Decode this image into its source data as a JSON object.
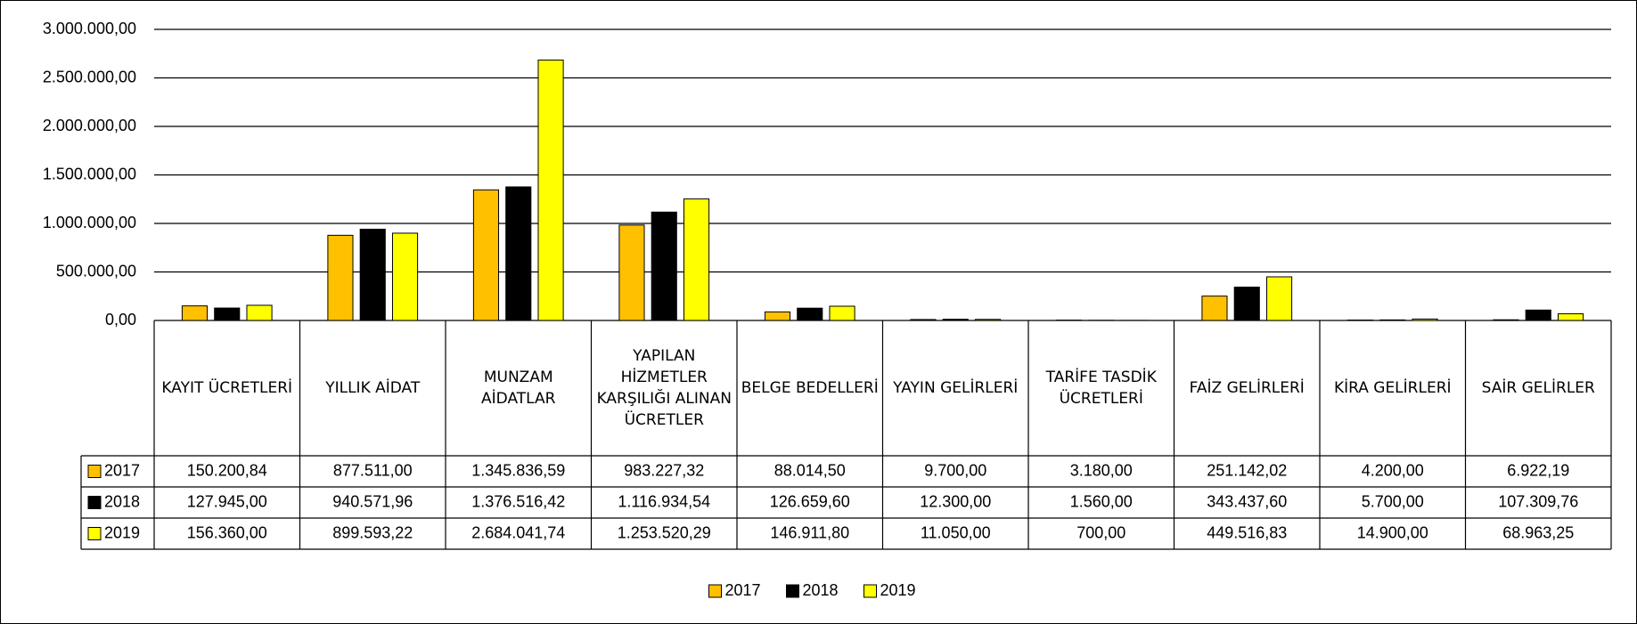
{
  "chart_data": {
    "type": "bar",
    "categories": [
      "KAYIT ÜCRETLERİ",
      "YILLIK AİDAT",
      "MUNZAM AİDATLAR",
      "YAPILAN HİZMETLER KARŞILIĞI ALINAN ÜCRETLER",
      "BELGE BEDELLERİ",
      "YAYIN GELİRLERİ",
      "TARİFE TASDİK ÜCRETLERİ",
      "FAİZ GELİRLERİ",
      "KİRA GELİRLERİ",
      "SAİR GELİRLER"
    ],
    "series": [
      {
        "name": "2017",
        "color": "#ffc000",
        "values": [
          150200.84,
          877511.0,
          1345836.59,
          983227.32,
          88014.5,
          9700.0,
          3180.0,
          251142.02,
          4200.0,
          6922.19
        ],
        "value_labels": [
          "150.200,84",
          "877.511,00",
          "1.345.836,59",
          "983.227,32",
          "88.014,50",
          "9.700,00",
          "3.180,00",
          "251.142,02",
          "4.200,00",
          "6.922,19"
        ]
      },
      {
        "name": "2018",
        "color": "#000000",
        "values": [
          127945.0,
          940571.96,
          1376516.42,
          1116934.54,
          126659.6,
          12300.0,
          1560.0,
          343437.6,
          5700.0,
          107309.76
        ],
        "value_labels": [
          "127.945,00",
          "940.571,96",
          "1.376.516,42",
          "1.116.934,54",
          "126.659,60",
          "12.300,00",
          "1.560,00",
          "343.437,60",
          "5.700,00",
          "107.309,76"
        ]
      },
      {
        "name": "2019",
        "color": "#ffff00",
        "values": [
          156360.0,
          899593.22,
          2684041.74,
          1253520.29,
          146911.8,
          11050.0,
          700.0,
          449516.83,
          14900.0,
          68963.25
        ],
        "value_labels": [
          "156.360,00",
          "899.593,22",
          "2.684.041,74",
          "1.253.520,29",
          "146.911,80",
          "11.050,00",
          "700,00",
          "449.516,83",
          "14.900,00",
          "68.963,25"
        ]
      }
    ],
    "ylim": [
      0,
      3000000
    ],
    "yticks": [
      {
        "value": 0,
        "label": "0,00"
      },
      {
        "value": 500000,
        "label": "500.000,00"
      },
      {
        "value": 1000000,
        "label": "1.000.000,00"
      },
      {
        "value": 1500000,
        "label": "1.500.000,00"
      },
      {
        "value": 2000000,
        "label": "2.000.000,00"
      },
      {
        "value": 2500000,
        "label": "2.500.000,00"
      },
      {
        "value": 3000000,
        "label": "3.000.000,00"
      }
    ],
    "grid": true,
    "legend": "bottom"
  }
}
